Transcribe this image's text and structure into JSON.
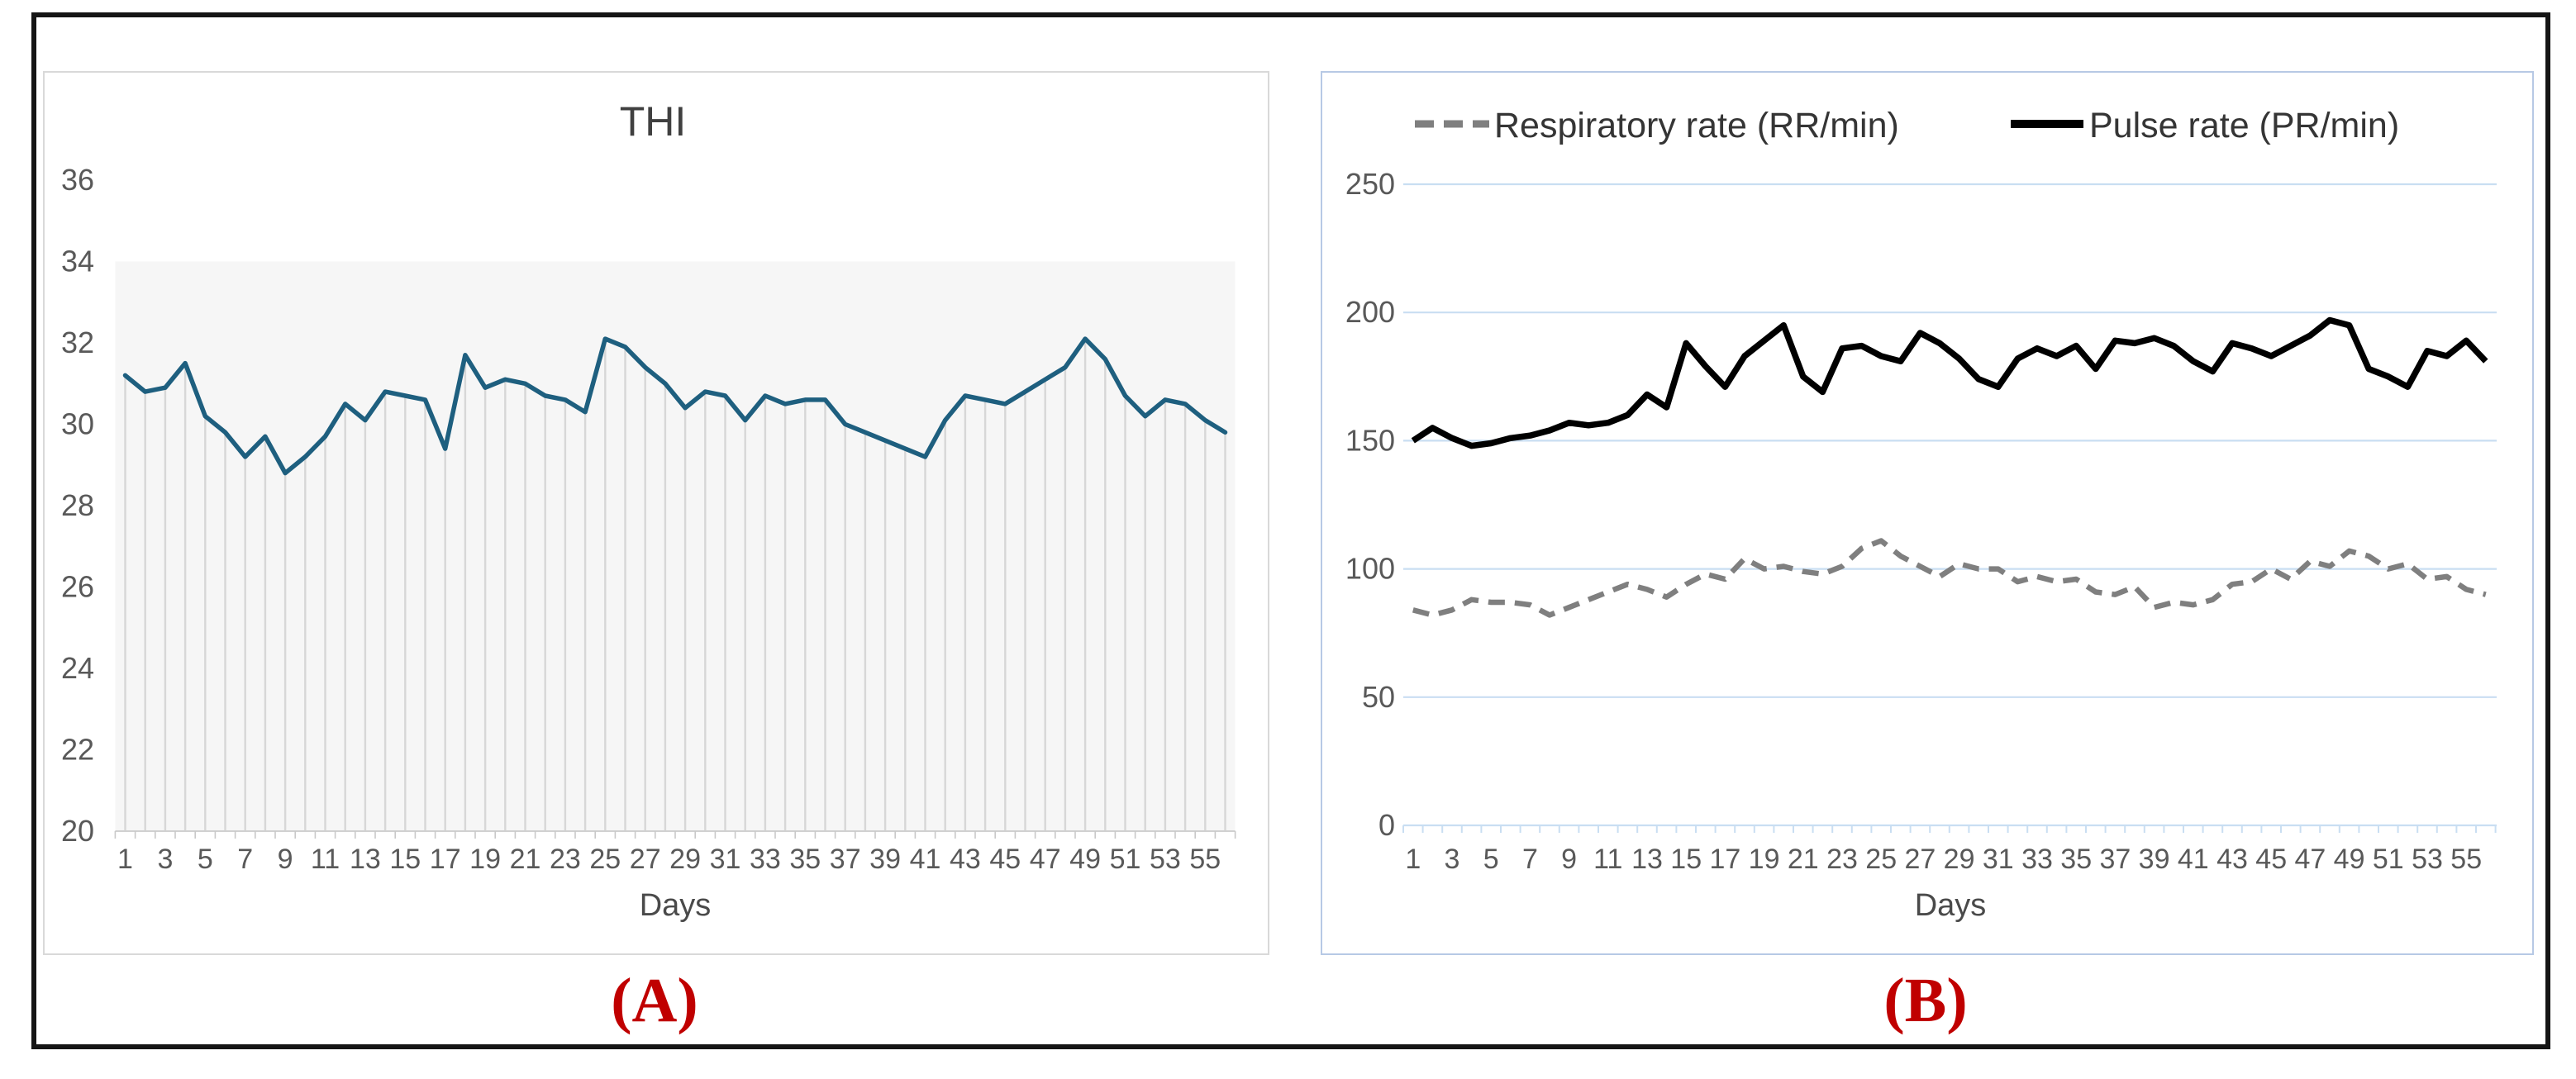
{
  "figure": {
    "captions": {
      "a": "(A)",
      "b": "(B)"
    },
    "caption_color": "#c00000"
  },
  "chart_data": [
    {
      "id": "thi",
      "type": "line",
      "title": "THI",
      "xlabel": "Days",
      "n_days": 56,
      "x_tick_labels": [
        "1",
        "3",
        "5",
        "7",
        "9",
        "11",
        "13",
        "15",
        "17",
        "19",
        "21",
        "23",
        "25",
        "27",
        "29",
        "31",
        "33",
        "35",
        "37",
        "39",
        "41",
        "43",
        "45",
        "47",
        "49",
        "51",
        "53",
        "55"
      ],
      "ylim": [
        20,
        36
      ],
      "y_ticks": [
        36,
        34,
        32,
        30,
        28,
        26,
        24,
        22,
        20
      ],
      "grid": "none",
      "drop_lines": true,
      "legend_position": "none",
      "series": [
        {
          "name": "THI",
          "color": "#1e5f7f",
          "style": "solid",
          "values": [
            31.2,
            30.8,
            30.9,
            31.5,
            30.2,
            29.8,
            29.2,
            29.7,
            28.8,
            29.2,
            29.7,
            30.5,
            30.1,
            30.8,
            30.7,
            30.6,
            29.4,
            31.7,
            30.9,
            31.1,
            31.0,
            30.7,
            30.6,
            30.3,
            32.1,
            31.9,
            31.4,
            31.0,
            30.4,
            30.8,
            30.7,
            30.1,
            30.7,
            30.5,
            30.6,
            30.6,
            30.0,
            29.8,
            29.6,
            29.4,
            29.2,
            30.1,
            30.7,
            30.6,
            30.5,
            30.8,
            31.1,
            31.4,
            32.1,
            31.6,
            30.7,
            30.2,
            30.6,
            30.5,
            30.1,
            29.8
          ]
        }
      ]
    },
    {
      "id": "vitals",
      "type": "line",
      "title": "",
      "xlabel": "Days",
      "n_days": 56,
      "x_tick_labels": [
        "1",
        "3",
        "5",
        "7",
        "9",
        "11",
        "13",
        "15",
        "17",
        "19",
        "21",
        "23",
        "25",
        "27",
        "29",
        "31",
        "33",
        "35",
        "37",
        "39",
        "41",
        "43",
        "45",
        "47",
        "49",
        "51",
        "53",
        "55"
      ],
      "ylim": [
        0,
        250
      ],
      "y_ticks": [
        250,
        200,
        150,
        100,
        50,
        0
      ],
      "grid": "horizontal",
      "gridline_color": "#c9def2",
      "legend_position": "top",
      "series": [
        {
          "name": "Respiratory rate (RR/min)",
          "color": "#7f7f7f",
          "style": "dashed",
          "values": [
            84,
            82,
            84,
            88,
            87,
            87,
            86,
            82,
            85,
            88,
            91,
            94,
            92,
            89,
            94,
            98,
            96,
            104,
            100,
            101,
            99,
            98,
            101,
            108,
            111,
            105,
            101,
            97,
            102,
            100,
            100,
            95,
            97,
            95,
            96,
            91,
            90,
            93,
            85,
            87,
            86,
            88,
            94,
            95,
            100,
            96,
            103,
            101,
            107,
            105,
            100,
            102,
            96,
            97,
            92,
            90
          ]
        },
        {
          "name": "Pulse rate (PR/min)",
          "color": "#000000",
          "style": "solid",
          "values": [
            150,
            155,
            151,
            148,
            149,
            151,
            152,
            154,
            157,
            156,
            157,
            160,
            168,
            163,
            188,
            179,
            171,
            183,
            189,
            195,
            175,
            169,
            186,
            187,
            183,
            181,
            192,
            188,
            182,
            174,
            171,
            182,
            186,
            183,
            187,
            178,
            189,
            188,
            190,
            187,
            181,
            177,
            188,
            186,
            183,
            187,
            191,
            197,
            195,
            178,
            175,
            171,
            185,
            183,
            189,
            181
          ]
        }
      ]
    }
  ]
}
